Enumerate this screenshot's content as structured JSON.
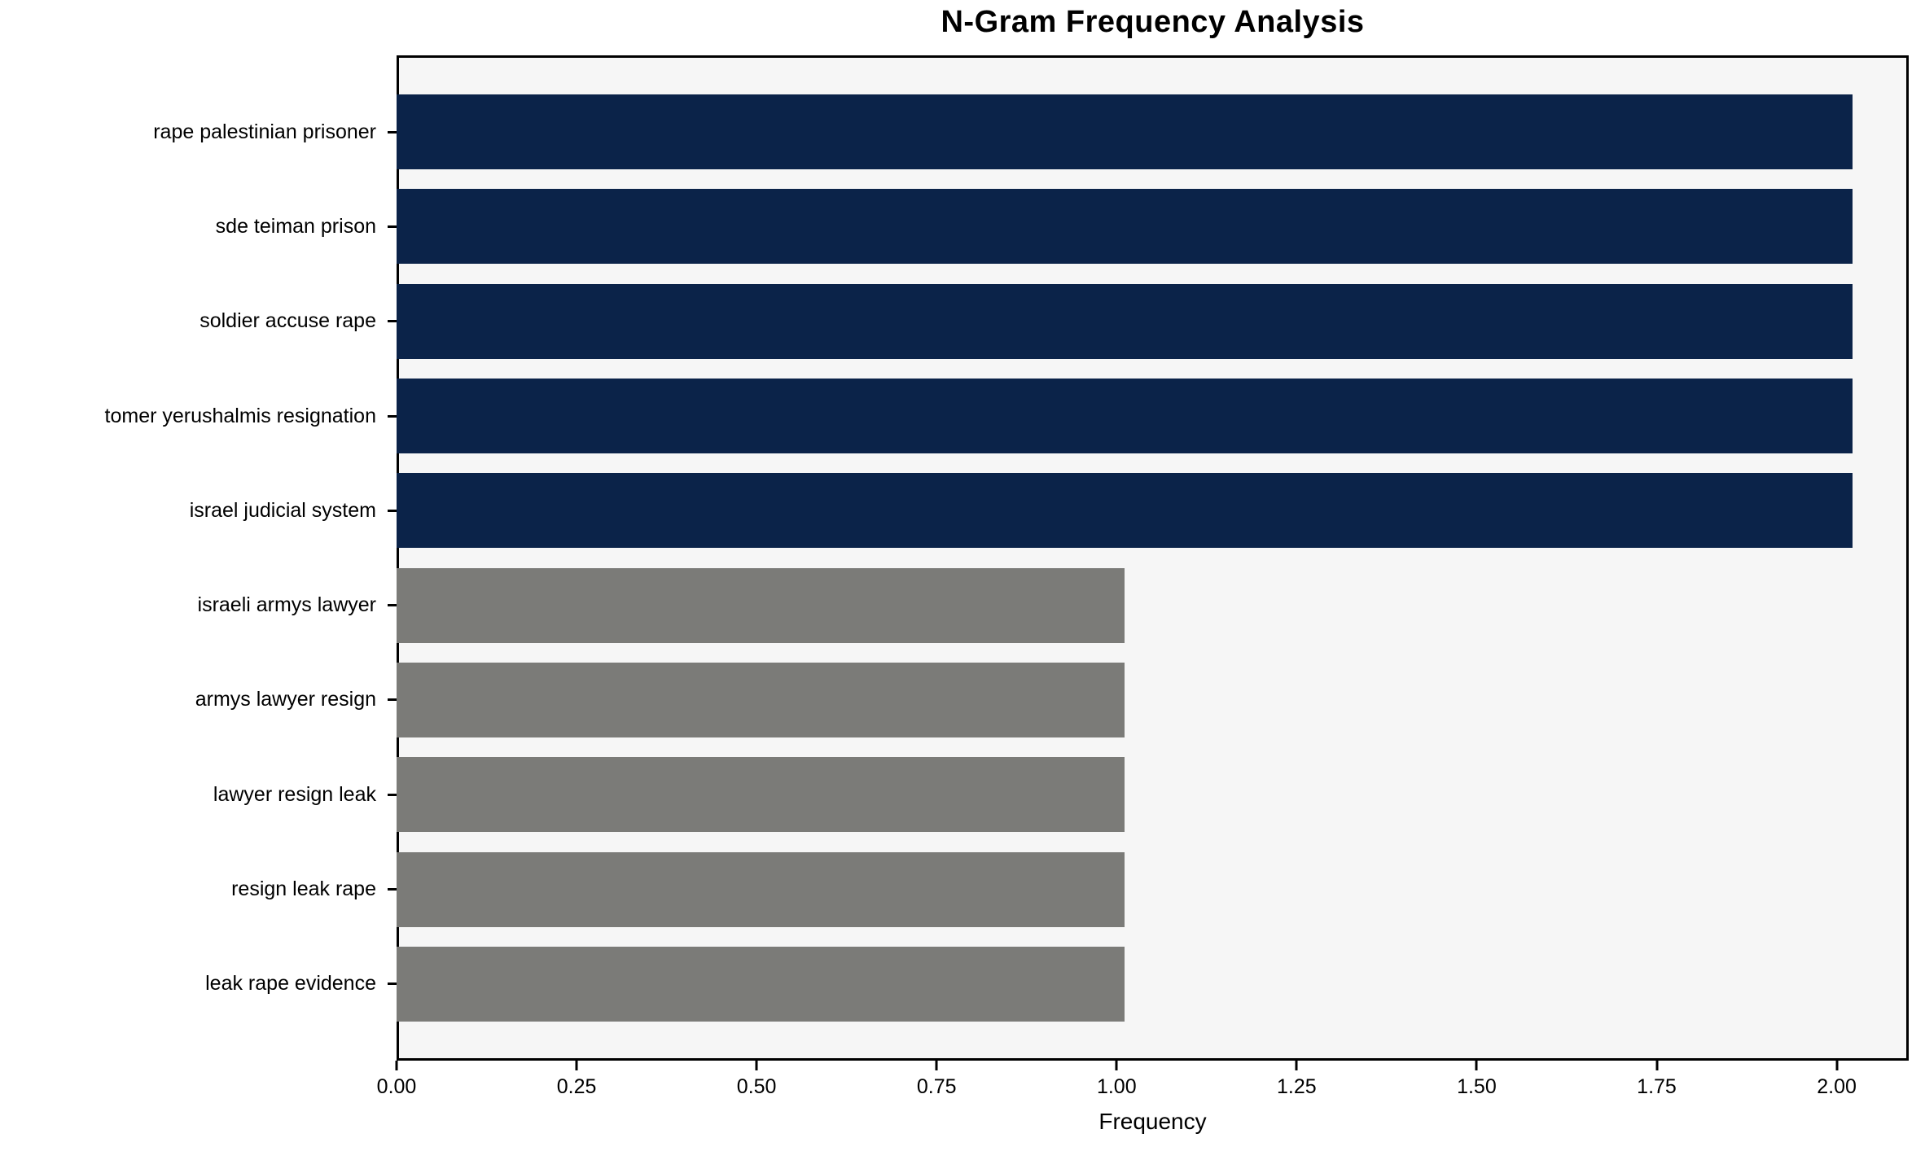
{
  "chart_data": {
    "type": "bar",
    "orientation": "horizontal",
    "title": "N-Gram Frequency Analysis",
    "xlabel": "Frequency",
    "ylabel": "",
    "categories": [
      "rape palestinian prisoner",
      "sde teiman prison",
      "soldier accuse rape",
      "tomer yerushalmis resignation",
      "israel judicial system",
      "israeli armys lawyer",
      "armys lawyer resign",
      "lawyer resign leak",
      "resign leak rape",
      "leak rape evidence"
    ],
    "values": [
      2,
      2,
      2,
      2,
      2,
      1,
      1,
      1,
      1,
      1
    ],
    "bar_colors": [
      "#0b2349",
      "#0b2349",
      "#0b2349",
      "#0b2349",
      "#0b2349",
      "#7b7b78",
      "#7b7b78",
      "#7b7b78",
      "#7b7b78",
      "#7b7b78"
    ],
    "xlim": [
      0,
      2.1
    ],
    "xticks": [
      {
        "value": 0.0,
        "label": "0.00"
      },
      {
        "value": 0.25,
        "label": "0.25"
      },
      {
        "value": 0.5,
        "label": "0.50"
      },
      {
        "value": 0.75,
        "label": "0.75"
      },
      {
        "value": 1.0,
        "label": "1.00"
      },
      {
        "value": 1.25,
        "label": "1.25"
      },
      {
        "value": 1.5,
        "label": "1.50"
      },
      {
        "value": 1.75,
        "label": "1.75"
      },
      {
        "value": 2.0,
        "label": "2.00"
      }
    ],
    "grid": false,
    "legend": null,
    "colors": {
      "high_frequency_bar": "#0b2349",
      "low_frequency_bar": "#7b7b78",
      "plot_background": "#f6f6f6",
      "figure_background": "#ffffff",
      "spine": "#000000",
      "text": "#000000"
    }
  }
}
